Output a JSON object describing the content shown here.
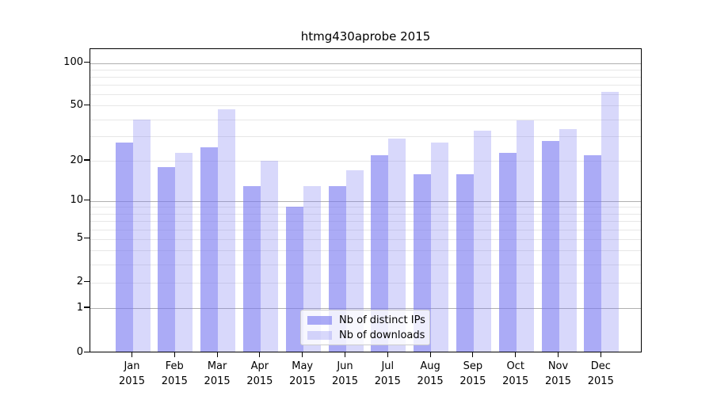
{
  "chart_data": {
    "type": "bar",
    "title": "htmg430aprobe 2015",
    "categories": [
      "Jan",
      "Feb",
      "Mar",
      "Apr",
      "May",
      "Jun",
      "Jul",
      "Aug",
      "Sep",
      "Oct",
      "Nov",
      "Dec"
    ],
    "x_year_label": "2015",
    "series": [
      {
        "name": "Nb of distinct IPs",
        "color": "rgba(120,120,240,0.62)",
        "values": [
          27,
          18,
          25,
          13,
          9,
          13,
          22,
          16,
          16,
          23,
          28,
          22
        ]
      },
      {
        "name": "Nb of downloads",
        "color": "rgba(120,120,240,0.29)",
        "values": [
          40,
          23,
          47,
          20,
          13,
          17,
          29,
          27,
          33,
          39,
          34,
          63
        ]
      }
    ],
    "yscale": "log-like (position proportional to log10(value+1))",
    "ylim": [
      0,
      127
    ],
    "ytick_labels": [
      "0",
      "1",
      "2",
      "5",
      "10",
      "20",
      "50",
      "100"
    ],
    "major_gridlines": [
      1,
      10,
      100
    ],
    "minor_gridlines": [
      2,
      3,
      4,
      5,
      6,
      7,
      8,
      9,
      20,
      30,
      40,
      50,
      60,
      70,
      80,
      90
    ],
    "grid": true,
    "legend": {
      "position": "lower center",
      "entries": [
        "Nb of distinct IPs",
        "Nb of downloads"
      ]
    },
    "colors": {
      "bar_distinct_ips": "rgba(120,120,240,0.62)",
      "bar_downloads": "rgba(120,120,240,0.29)",
      "major_grid": "#b0b0b0",
      "minor_grid": "#e7e7e7",
      "axis": "#000000",
      "text": "#000000",
      "legend_border": "#cccccc",
      "legend_bg": "rgba(255,255,255,0.8)"
    }
  }
}
